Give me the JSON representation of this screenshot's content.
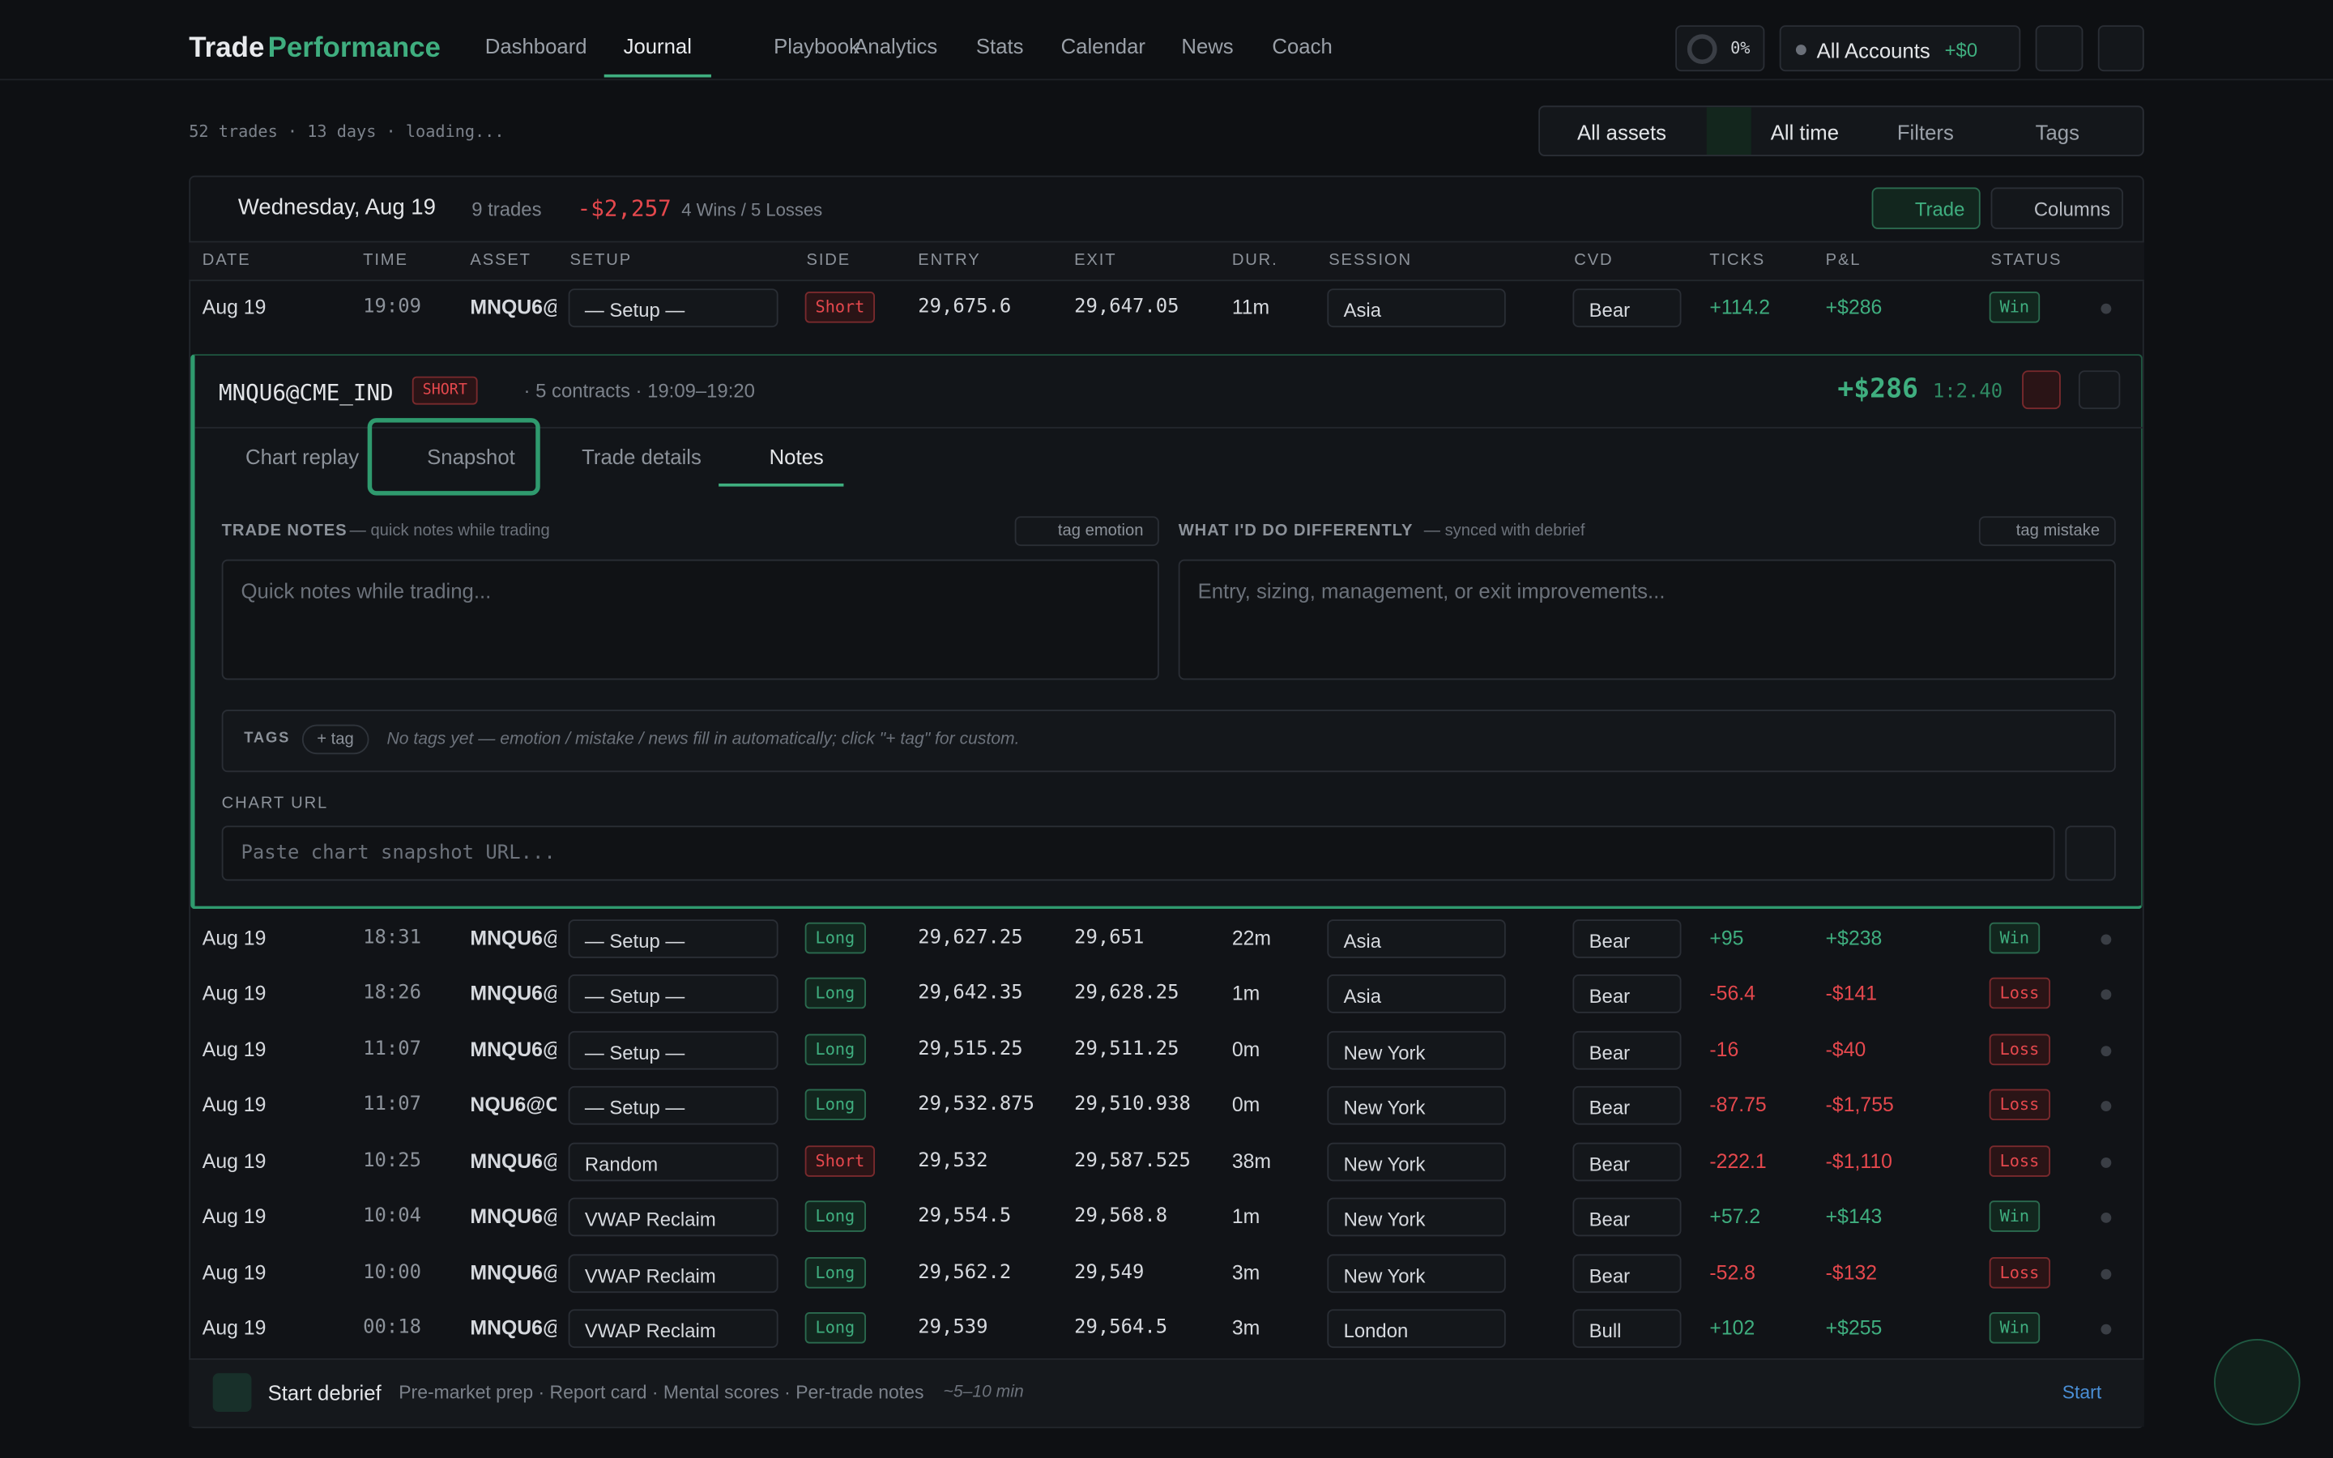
{
  "header": {
    "brand_main": "Trade",
    "brand_accent": "Performance",
    "nav": [
      "Dashboard",
      "Journal",
      "Playbook",
      "Analytics",
      "Stats",
      "Calendar",
      "News",
      "Coach"
    ],
    "active_nav": 1,
    "progress": "0%",
    "account": "All Accounts",
    "account_pnl": "+$0"
  },
  "summary": "52 trades · 13 days · loading...",
  "filters": [
    "All assets",
    "All time",
    "Filters",
    "Tags"
  ],
  "day": {
    "title": "Wednesday, Aug 19",
    "trades": "9 trades",
    "pnl": "-$2,257",
    "record": "4 Wins / 5 Losses",
    "add_button": "Trade",
    "columns_button": "Columns"
  },
  "table": {
    "columns": [
      "DATE",
      "TIME",
      "ASSET",
      "SETUP",
      "SIDE",
      "ENTRY",
      "EXIT",
      "DUR.",
      "SESSION",
      "CVD",
      "TICKS",
      "P&L",
      "STATUS"
    ],
    "rows": [
      [
        "Aug 19",
        "19:09",
        "MNQU6@",
        "— Setup —",
        "Short",
        "29,675.6",
        "29,647.05",
        "11m",
        "Asia",
        "Bear",
        "+114.2",
        "+$286",
        "Win"
      ],
      [
        "Aug 19",
        "18:31",
        "MNQU6@",
        "— Setup —",
        "Long",
        "29,627.25",
        "29,651",
        "22m",
        "Asia",
        "Bear",
        "+95",
        "+$238",
        "Win"
      ],
      [
        "Aug 19",
        "18:26",
        "MNQU6@",
        "— Setup —",
        "Long",
        "29,642.35",
        "29,628.25",
        "1m",
        "Asia",
        "Bear",
        "-56.4",
        "-$141",
        "Loss"
      ],
      [
        "Aug 19",
        "11:07",
        "MNQU6@",
        "— Setup —",
        "Long",
        "29,515.25",
        "29,511.25",
        "0m",
        "New York",
        "Bear",
        "-16",
        "-$40",
        "Loss"
      ],
      [
        "Aug 19",
        "11:07",
        "NQU6@C",
        "— Setup —",
        "Long",
        "29,532.875",
        "29,510.938",
        "0m",
        "New York",
        "Bear",
        "-87.75",
        "-$1,755",
        "Loss"
      ],
      [
        "Aug 19",
        "10:25",
        "MNQU6@",
        "Random",
        "Short",
        "29,532",
        "29,587.525",
        "38m",
        "New York",
        "Bear",
        "-222.1",
        "-$1,110",
        "Loss"
      ],
      [
        "Aug 19",
        "10:04",
        "MNQU6@",
        "VWAP Reclaim",
        "Long",
        "29,554.5",
        "29,568.8",
        "1m",
        "New York",
        "Bear",
        "+57.2",
        "+$143",
        "Win"
      ],
      [
        "Aug 19",
        "10:00",
        "MNQU6@",
        "VWAP Reclaim",
        "Long",
        "29,562.2",
        "29,549",
        "3m",
        "New York",
        "Bear",
        "-52.8",
        "-$132",
        "Loss"
      ],
      [
        "Aug 19",
        "00:18",
        "MNQU6@",
        "VWAP Reclaim",
        "Long",
        "29,539",
        "29,564.5",
        "3m",
        "London",
        "Bull",
        "+102",
        "+$255",
        "Win"
      ]
    ]
  },
  "detail": {
    "symbol": "MNQU6@CME_IND",
    "side": "SHORT",
    "meta": "· 5 contracts · 19:09–19:20",
    "pnl": "+$286",
    "rr": "1:2.40",
    "tabs": [
      "Chart replay",
      "Snapshot",
      "Trade details",
      "Notes"
    ],
    "active_tab": 3,
    "notes_label": "TRADE NOTES",
    "notes_hint": "— quick notes while trading",
    "notes_tag": "tag emotion",
    "notes_placeholder": "Quick notes while trading...",
    "diff_label": "WHAT I'D DO DIFFERENTLY",
    "diff_hint": "— synced with debrief",
    "diff_tag": "tag mistake",
    "diff_placeholder": "Entry, sizing, management, or exit improvements...",
    "tags_label": "TAGS",
    "add_tag": "+ tag",
    "tags_empty": "No tags yet — emotion / mistake / news fill in automatically; click \"+ tag\" for custom.",
    "url_label": "CHART URL",
    "url_placeholder": "Paste chart snapshot URL..."
  },
  "debrief": {
    "title": "Start debrief",
    "items": "Pre-market prep · Report card · Mental scores · Per-trade notes",
    "time": "~5–10 min",
    "action": "Start"
  }
}
